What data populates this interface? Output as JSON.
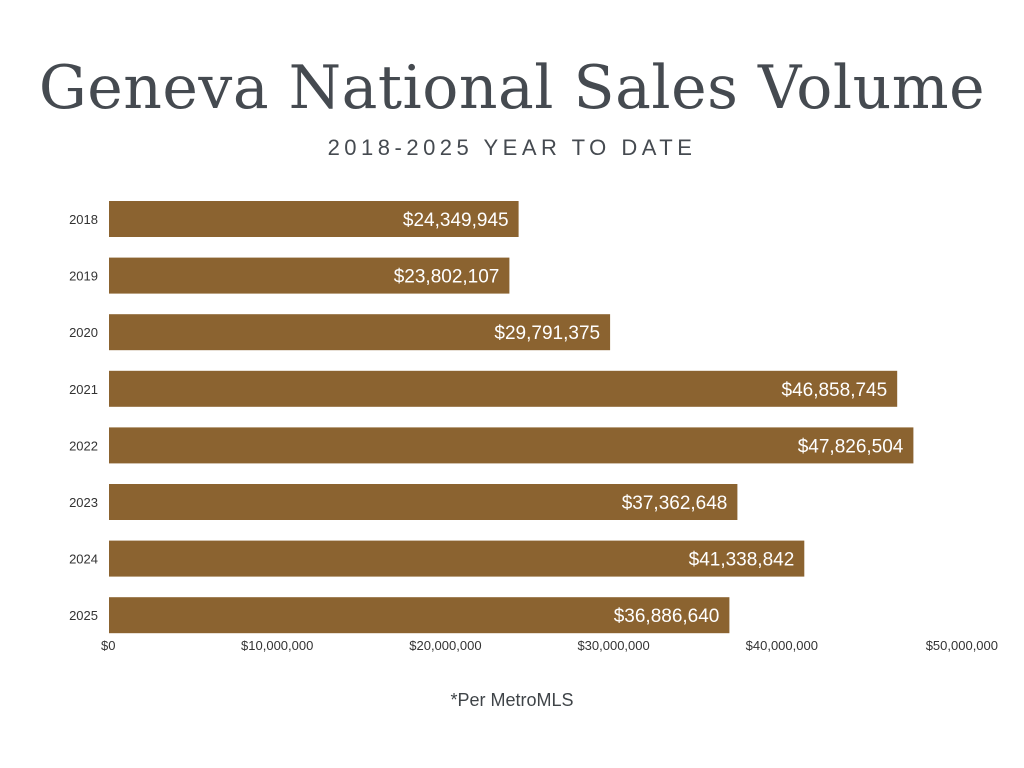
{
  "chart_data": {
    "type": "bar",
    "orientation": "horizontal",
    "title": "Geneva National Sales Volume",
    "subtitle": "2018-2025 YEAR TO DATE",
    "categories": [
      "2018",
      "2019",
      "2020",
      "2021",
      "2022",
      "2023",
      "2024",
      "2025"
    ],
    "values": [
      24349945,
      23802107,
      29791375,
      46858745,
      47826504,
      37362648,
      41338842,
      36886640
    ],
    "data_labels": [
      "$24,349,945",
      "$23,802,107",
      "$29,791,375",
      "$46,858,745",
      "$47,826,504",
      "$37,362,648",
      "$41,338,842",
      "$36,886,640"
    ],
    "x_ticks": [
      0,
      10000000,
      20000000,
      30000000,
      40000000,
      50000000
    ],
    "x_tick_labels": [
      "$0",
      "$10,000,000",
      "$20,000,000",
      "$30,000,000",
      "$40,000,000",
      "$50,000,000"
    ],
    "xlim": [
      0,
      50000000
    ],
    "xlabel": "",
    "ylabel": "",
    "grid": false,
    "legend": "none",
    "bar_color": "#8b6330",
    "footnote": "*Per MetroMLS"
  }
}
